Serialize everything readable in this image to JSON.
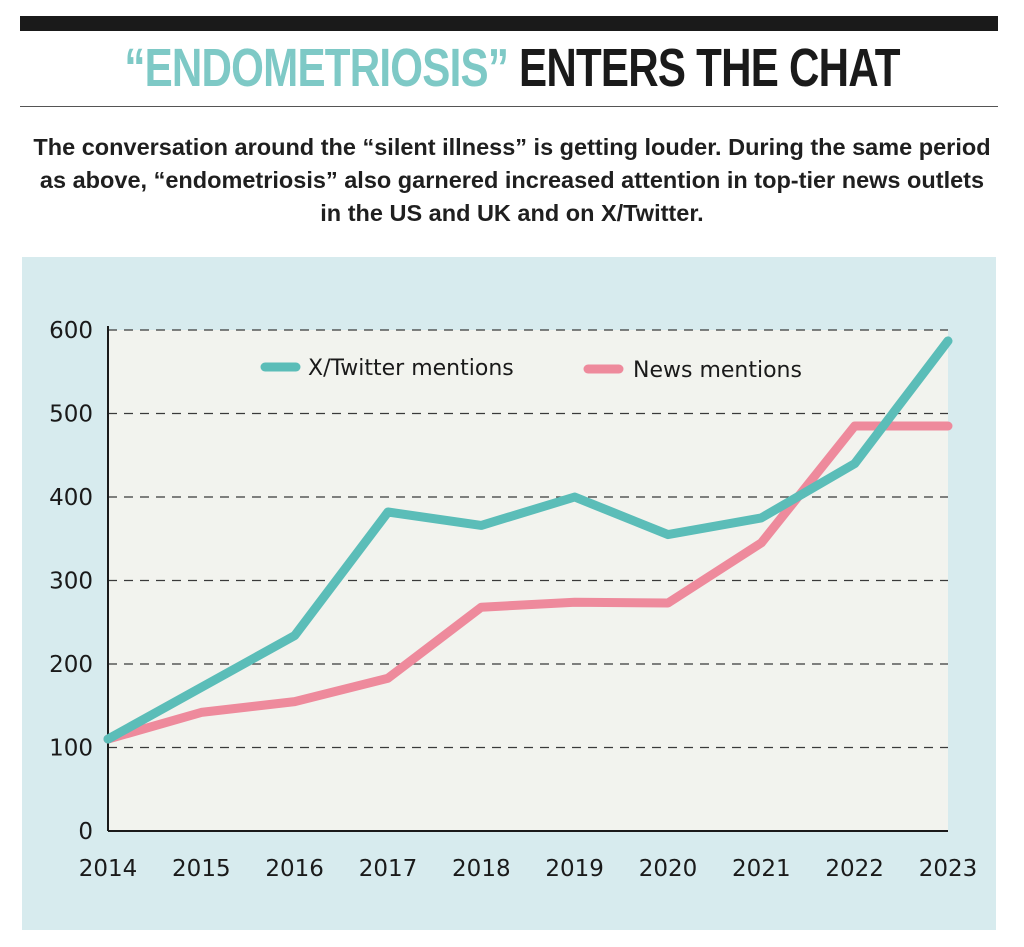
{
  "header": {
    "title_accent": "“ENDOMETRIOSIS”",
    "title_rest": " ENTERS THE CHAT",
    "subtitle": "The conversation around the “silent illness” is getting louder. During the same period as above, “endometriosis” also garnered increased attention in top-tier news outlets in the US and UK and on X/Twitter."
  },
  "colors": {
    "accent": "#7ec9c6",
    "twitter_line": "#5bbdb8",
    "news_line": "#ee8a9c",
    "panel_bg": "#d7ebee",
    "plot_bg": "#f2f3ee"
  },
  "chart_data": {
    "type": "line",
    "title": "",
    "xlabel": "",
    "ylabel": "",
    "x": [
      2014,
      2015,
      2016,
      2017,
      2018,
      2019,
      2020,
      2021,
      2022,
      2023
    ],
    "ylim": [
      0,
      600
    ],
    "yticks": [
      0,
      100,
      200,
      300,
      400,
      500,
      600
    ],
    "grid": "horizontal dashed",
    "legend_placement": "top",
    "series": [
      {
        "name": "X/Twitter mentions",
        "color": "#5bbdb8",
        "points": [
          [
            2014,
            110
          ],
          [
            2016,
            234
          ],
          [
            2017,
            382
          ],
          [
            2018,
            366
          ],
          [
            2019,
            400
          ],
          [
            2020,
            355
          ],
          [
            2021,
            375
          ],
          [
            2022,
            440
          ],
          [
            2023,
            587
          ]
        ]
      },
      {
        "name": "News mentions",
        "color": "#ee8a9c",
        "points": [
          [
            2014,
            110
          ],
          [
            2015,
            142
          ],
          [
            2016,
            155
          ],
          [
            2017,
            183
          ],
          [
            2018,
            268
          ],
          [
            2019,
            274
          ],
          [
            2020,
            273
          ],
          [
            2021,
            345
          ],
          [
            2022,
            485
          ],
          [
            2023,
            485
          ]
        ]
      }
    ]
  }
}
